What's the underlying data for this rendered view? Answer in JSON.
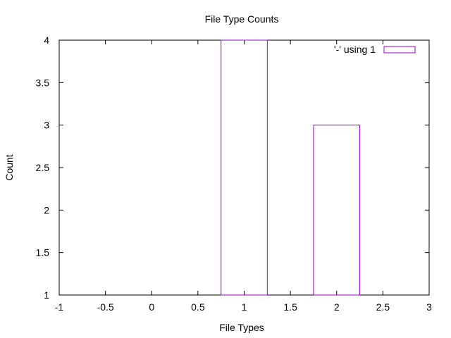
{
  "chart_data": {
    "type": "bar",
    "title": "File Type Counts",
    "xlabel": "File Types",
    "ylabel": "Count",
    "xlim": [
      -1,
      3
    ],
    "ylim": [
      1,
      4
    ],
    "xticks": [
      "-1",
      "-0.5",
      "0",
      "0.5",
      "1",
      "1.5",
      "2",
      "2.5",
      "3"
    ],
    "yticks": [
      "1",
      "1.5",
      "2",
      "2.5",
      "3",
      "3.5",
      "4"
    ],
    "bar_width": 0.5,
    "series": [
      {
        "name": "'-' using 1",
        "color": "#9400d3",
        "x": [
          0,
          1,
          2
        ],
        "values": [
          1,
          4,
          3
        ]
      }
    ],
    "legend_position": "top-right",
    "grid": false
  }
}
